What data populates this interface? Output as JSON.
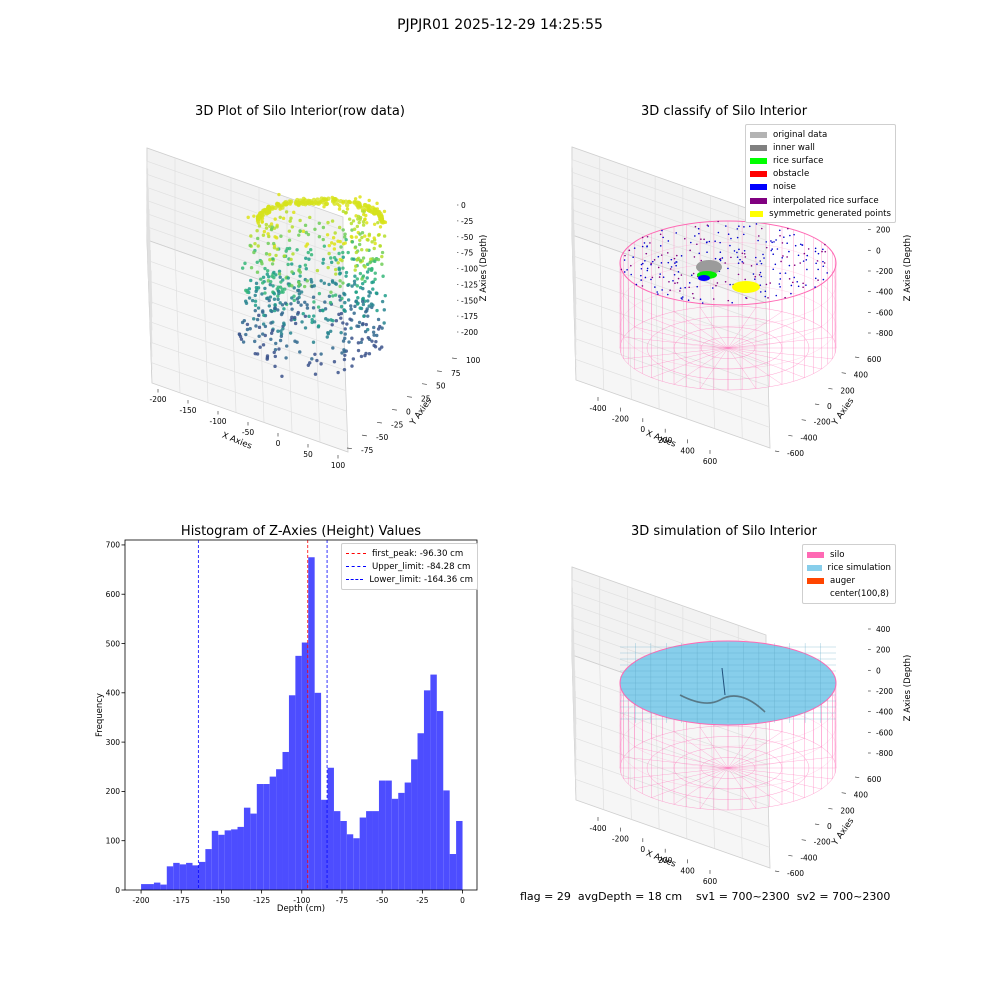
{
  "figure": {
    "suptitle": "PJPJR01 2025-12-29 14:25:55",
    "footer": "flag = 29  avgDepth = 18 cm    sv1 = 700~2300  sv2 = 700~2300"
  },
  "panels": {
    "raw": {
      "title": "3D Plot of Silo Interior(row data)",
      "xlabel": "X Axies",
      "ylabel": "Y Axies",
      "zlabel": "Z Axies (Depth)",
      "xticks": [
        "-200",
        "-150",
        "-100",
        "-50",
        "0",
        "50",
        "100"
      ],
      "yticks": [
        "-75",
        "-50",
        "-25",
        "0",
        "25",
        "50",
        "75",
        "100"
      ],
      "zticks": [
        "0",
        "-25",
        "-50",
        "-75",
        "-100",
        "-125",
        "-150",
        "-175",
        "-200"
      ]
    },
    "classify": {
      "title": "3D classify of Silo Interior",
      "xlabel": "X Axies",
      "ylabel": "Y Axies",
      "zlabel": "Z Axies (Depth)",
      "xticks": [
        "-400",
        "-200",
        "0",
        "200",
        "400",
        "600"
      ],
      "yticks": [
        "-600",
        "-400",
        "-200",
        "0",
        "200",
        "400",
        "600"
      ],
      "zticks": [
        "400",
        "200",
        "0",
        "-200",
        "-400",
        "-600",
        "-800"
      ],
      "legend": [
        {
          "label": "original data",
          "color": "#b3b3b3"
        },
        {
          "label": "inner wall",
          "color": "#808080"
        },
        {
          "label": "rice surface",
          "color": "#00ff00"
        },
        {
          "label": "obstacle",
          "color": "#ff0000"
        },
        {
          "label": "noise",
          "color": "#0000ff"
        },
        {
          "label": "interpolated rice surface",
          "color": "#800080"
        },
        {
          "label": "symmetric generated points",
          "color": "#ffff00"
        }
      ]
    },
    "simulation": {
      "title": "3D simulation of Silo Interior",
      "xlabel": "X Axies",
      "ylabel": "Y Axies",
      "zlabel": "Z Axies (Depth)",
      "xticks": [
        "-400",
        "-200",
        "0",
        "200",
        "400",
        "600"
      ],
      "yticks": [
        "-600",
        "-400",
        "-200",
        "0",
        "200",
        "400",
        "600"
      ],
      "zticks": [
        "400",
        "200",
        "0",
        "-200",
        "-400",
        "-600",
        "-800"
      ],
      "legend": [
        {
          "label": "silo",
          "color": "#ff69b4"
        },
        {
          "label": "rice simulation",
          "color": "#87ceeb"
        },
        {
          "label": "auger",
          "color": "#ff4500"
        },
        {
          "label": "center(100,8)",
          "color": ""
        }
      ]
    }
  },
  "chart_data": {
    "type": "bar",
    "title": "Histogram of Z-Axies (Height) Values",
    "xlabel": "Depth (cm)",
    "ylabel": "Frequency",
    "xlim": [
      -210,
      9
    ],
    "ylim": [
      0,
      710
    ],
    "xticks": [
      -200,
      -175,
      -150,
      -125,
      -100,
      -75,
      -50,
      -25,
      0
    ],
    "yticks": [
      0,
      100,
      200,
      300,
      400,
      500,
      600,
      700
    ],
    "bin_start": -200,
    "bin_width": 4,
    "bar_color": "#4d4dff",
    "values": [
      12,
      12,
      15,
      11,
      48,
      55,
      52,
      55,
      50,
      57,
      83,
      120,
      112,
      121,
      123,
      128,
      167,
      155,
      215,
      215,
      230,
      245,
      280,
      395,
      475,
      502,
      675,
      400,
      183,
      248,
      160,
      140,
      113,
      105,
      147,
      160,
      160,
      222,
      222,
      185,
      197,
      218,
      265,
      318,
      405,
      437,
      363,
      202,
      73,
      140
    ],
    "lines": [
      {
        "label": "first_peak: -96.30 cm",
        "x": -96.3,
        "color": "#ff0000"
      },
      {
        "label": "Upper_limit: -84.28 cm",
        "x": -84.28,
        "color": "#0000ff"
      },
      {
        "label": "Lower_limit: -164.36 cm",
        "x": -164.36,
        "color": "#0000ff"
      }
    ],
    "grid": false,
    "legend_position": "upper right"
  }
}
